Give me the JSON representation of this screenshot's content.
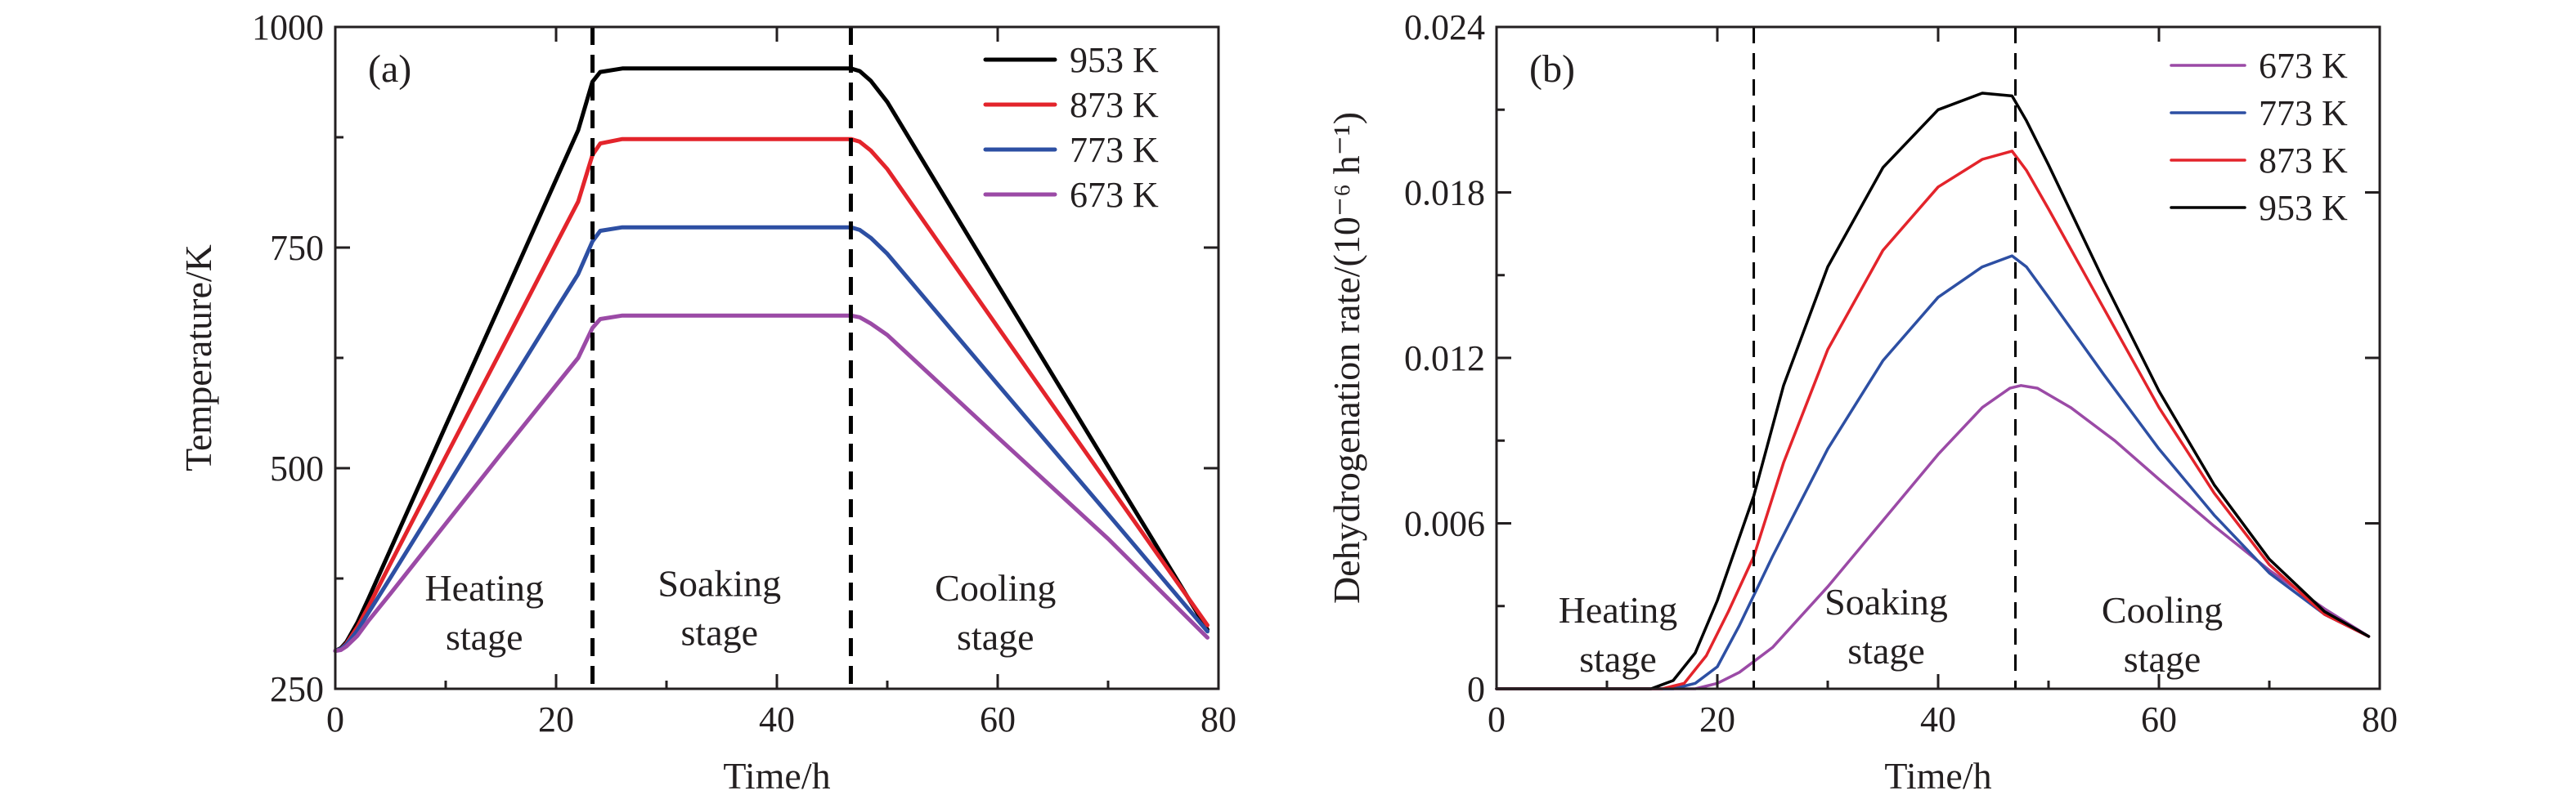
{
  "chart_data": [
    {
      "type": "line",
      "panel_label": "(a)",
      "xlabel": "Time/h",
      "ylabel": "Temperature/K",
      "xlim": [
        0,
        80
      ],
      "ylim": [
        250,
        1000
      ],
      "xticks": [
        0,
        20,
        40,
        60,
        80
      ],
      "yticks": [
        250,
        500,
        750,
        1000
      ],
      "grid": false,
      "legend_position": "top-right",
      "vlines": [
        {
          "x": 23.3,
          "color": "#000000"
        },
        {
          "x": 46.7,
          "color": "#000000"
        }
      ],
      "stage_labels": [
        {
          "lines": [
            "Heating",
            "stage"
          ],
          "x": 13.5,
          "y": 350
        },
        {
          "lines": [
            "Soaking",
            "stage"
          ],
          "x": 34.8,
          "y": 355
        },
        {
          "lines": [
            "Cooling",
            "stage"
          ],
          "x": 59.8,
          "y": 350
        }
      ],
      "series": [
        {
          "name": "953 K",
          "color": "#000000",
          "x": [
            0,
            0.5,
            1,
            2,
            3,
            5,
            10,
            15,
            20,
            22,
            23.3,
            24,
            26,
            30,
            40,
            45,
            46.7,
            47.5,
            48.5,
            50,
            60,
            70,
            79
          ],
          "y": [
            293,
            296,
            303,
            325,
            352,
            408,
            548,
            687,
            827,
            883,
            938,
            949,
            953,
            953,
            953,
            953,
            953,
            950,
            939,
            915,
            708,
            502,
            317
          ]
        },
        {
          "name": "873 K",
          "color": "#e3242b",
          "x": [
            0,
            0.5,
            1,
            2,
            3,
            5,
            10,
            15,
            20,
            22,
            23.3,
            24,
            26,
            30,
            40,
            45,
            46.7,
            47.5,
            48.5,
            50,
            60,
            70,
            79
          ],
          "y": [
            293,
            295,
            301,
            320,
            343,
            392,
            513,
            633,
            754,
            802,
            855,
            868,
            873,
            873,
            873,
            873,
            873,
            870,
            860,
            839,
            660,
            482,
            322
          ]
        },
        {
          "name": "773 K",
          "color": "#2d4fa3",
          "x": [
            0,
            0.5,
            1,
            2,
            3,
            5,
            10,
            15,
            20,
            22,
            23.3,
            24,
            26,
            30,
            40,
            45,
            46.7,
            47.5,
            48.5,
            50,
            60,
            70,
            79
          ],
          "y": [
            293,
            295,
            300,
            316,
            336,
            376,
            477,
            579,
            680,
            720,
            757,
            769,
            773,
            773,
            773,
            773,
            773,
            770,
            761,
            743,
            595,
            448,
            315
          ]
        },
        {
          "name": "673 K",
          "color": "#9b4aa6",
          "x": [
            0,
            0.5,
            1,
            2,
            3,
            5,
            10,
            15,
            20,
            22,
            23.3,
            24,
            26,
            30,
            40,
            45,
            46.7,
            47.5,
            48.5,
            50,
            60,
            70,
            79
          ],
          "y": [
            293,
            294,
            298,
            310,
            327,
            358,
            437,
            516,
            594,
            625,
            659,
            669,
            673,
            673,
            673,
            673,
            673,
            671,
            664,
            651,
            535,
            420,
            308
          ]
        }
      ]
    },
    {
      "type": "line",
      "panel_label": "(b)",
      "xlabel": "Time/h",
      "ylabel": "Dehydrogenation rate/(10⁻⁶ h⁻¹)",
      "xlim": [
        0,
        80
      ],
      "ylim": [
        0,
        0.024
      ],
      "xticks": [
        0,
        20,
        40,
        60,
        80
      ],
      "yticks": [
        0,
        0.006,
        0.012,
        0.018,
        0.024
      ],
      "ytick_labels": [
        "0",
        "0.006",
        "0.012",
        "0.018",
        "0.024"
      ],
      "grid": false,
      "legend_position": "top-right",
      "vlines": [
        {
          "x": 23.3,
          "color": "#000000"
        },
        {
          "x": 47.0,
          "color": "#000000"
        }
      ],
      "stage_labels": [
        {
          "lines": [
            "Heating",
            "stage"
          ],
          "x": 11.0,
          "y": 0.0024
        },
        {
          "lines": [
            "Soaking",
            "stage"
          ],
          "x": 35.3,
          "y": 0.0027
        },
        {
          "lines": [
            "Cooling",
            "stage"
          ],
          "x": 60.3,
          "y": 0.0024
        }
      ],
      "series": [
        {
          "name": "673 K",
          "color": "#9b4aa6",
          "x": [
            0,
            10,
            18,
            20,
            22,
            25,
            30,
            35,
            40,
            44,
            46.5,
            47.5,
            49,
            52,
            56,
            60,
            65,
            70,
            75,
            79
          ],
          "y": [
            0,
            0,
            0,
            0.0002,
            0.0006,
            0.0015,
            0.0037,
            0.0061,
            0.0085,
            0.0102,
            0.0109,
            0.011,
            0.0109,
            0.0102,
            0.009,
            0.0076,
            0.0059,
            0.0043,
            0.0029,
            0.0019
          ]
        },
        {
          "name": "773 K",
          "color": "#2d4fa3",
          "x": [
            0,
            10,
            16,
            18,
            20,
            22,
            25,
            30,
            35,
            40,
            44,
            46.7,
            48,
            50,
            55,
            60,
            65,
            70,
            75,
            79
          ],
          "y": [
            0,
            0,
            0,
            0.0002,
            0.0008,
            0.0023,
            0.0048,
            0.0087,
            0.0119,
            0.0142,
            0.0153,
            0.0157,
            0.0153,
            0.0142,
            0.0114,
            0.0087,
            0.0063,
            0.0042,
            0.0027,
            0.0019
          ]
        },
        {
          "name": "873 K",
          "color": "#e3242b",
          "x": [
            0,
            10,
            15,
            17,
            19,
            21,
            23.3,
            26,
            30,
            35,
            40,
            44,
            46.7,
            48,
            50,
            55,
            60,
            65,
            70,
            75,
            79
          ],
          "y": [
            0,
            0,
            0,
            0.0002,
            0.0012,
            0.0028,
            0.0048,
            0.0082,
            0.0123,
            0.0159,
            0.0182,
            0.0192,
            0.0195,
            0.0188,
            0.0174,
            0.0138,
            0.0102,
            0.0071,
            0.0045,
            0.0027,
            0.0019
          ]
        },
        {
          "name": "953 K",
          "color": "#000000",
          "x": [
            0,
            10,
            14,
            16,
            18,
            20,
            22,
            23.3,
            26,
            30,
            35,
            40,
            44,
            46.7,
            48,
            50,
            55,
            60,
            65,
            70,
            75,
            79
          ],
          "y": [
            0,
            0,
            0,
            0.0003,
            0.0013,
            0.0032,
            0.0055,
            0.007,
            0.011,
            0.0153,
            0.0189,
            0.021,
            0.0216,
            0.0215,
            0.0206,
            0.019,
            0.0148,
            0.0108,
            0.0074,
            0.0047,
            0.0028,
            0.0019
          ]
        }
      ]
    }
  ]
}
